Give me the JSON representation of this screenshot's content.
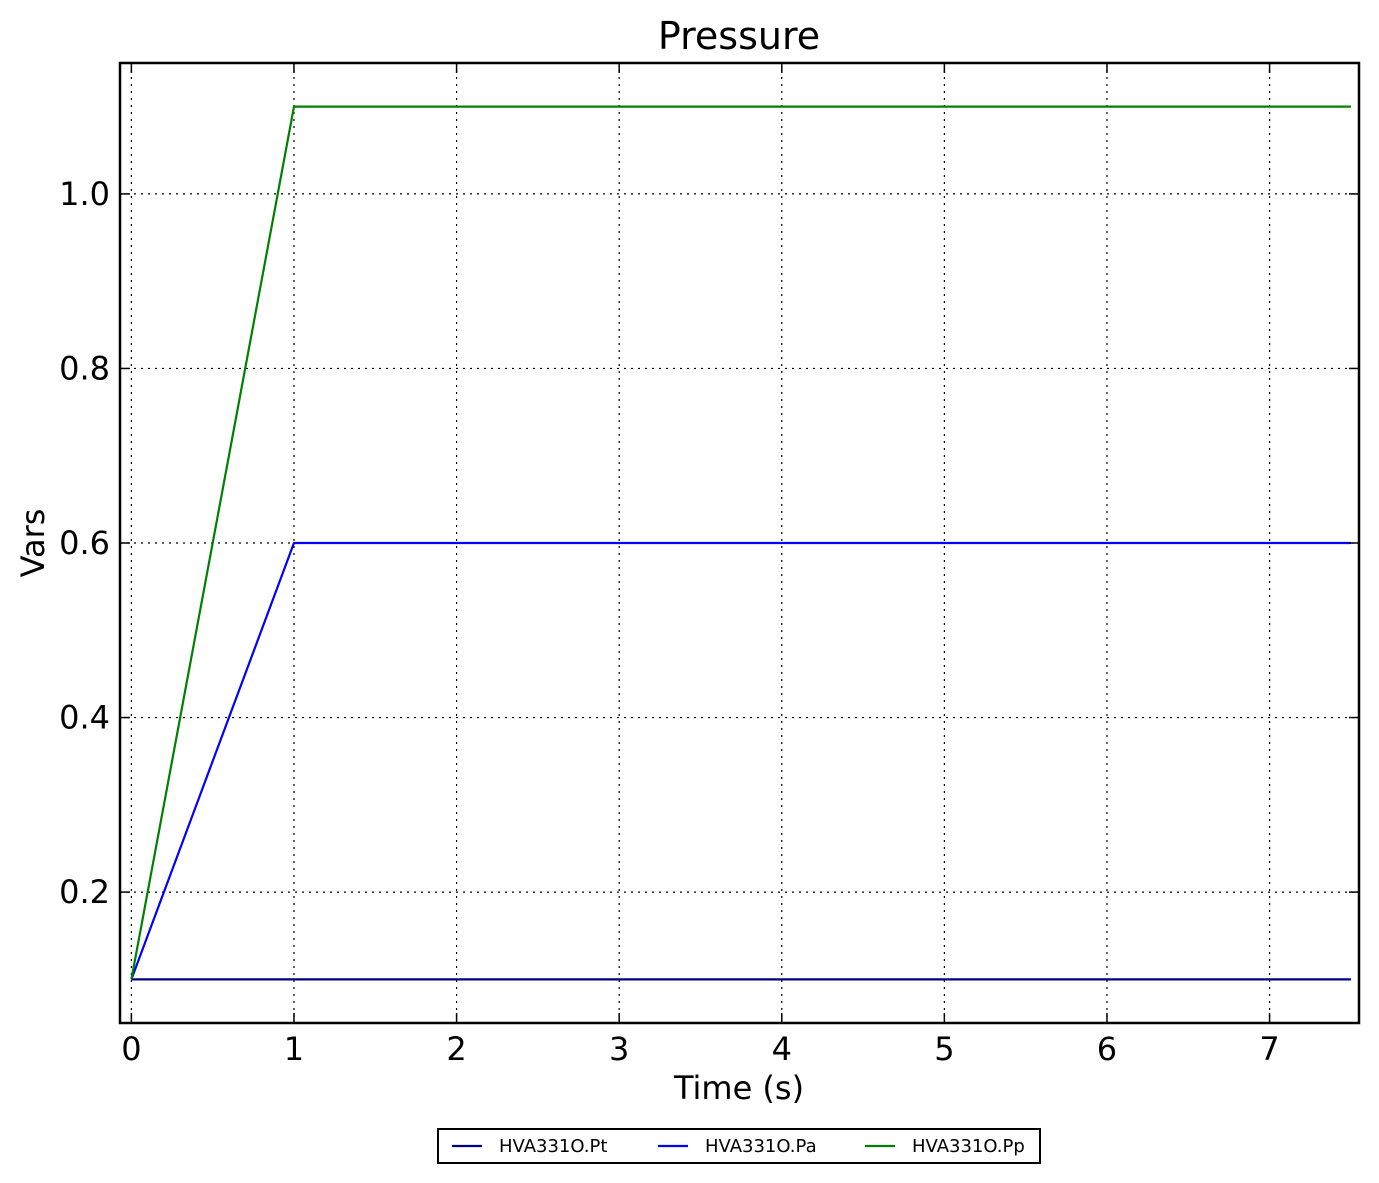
{
  "chart_data": {
    "type": "line",
    "title": "Pressure",
    "xlabel": "Time (s)",
    "ylabel": "Vars",
    "xlim": [
      -0.07,
      7.55
    ],
    "ylim": [
      0.05,
      1.15
    ],
    "xticks": [
      0,
      1,
      2,
      3,
      4,
      5,
      6,
      7
    ],
    "xtick_labels": [
      "0",
      "1",
      "2",
      "3",
      "4",
      "5",
      "6",
      "7"
    ],
    "yticks": [
      0.2,
      0.4,
      0.6,
      0.8,
      1.0
    ],
    "ytick_labels": [
      "0.2",
      "0.4",
      "0.6",
      "0.8",
      "1.0"
    ],
    "grid": true,
    "legend_position": "bottom-center",
    "series": [
      {
        "name": "HVA331O.Pt",
        "color": "#000080",
        "x": [
          0,
          7.5
        ],
        "y": [
          0.1,
          0.1
        ]
      },
      {
        "name": "HVA331O.Pa",
        "color": "#0000ff",
        "x": [
          0,
          1,
          7.5
        ],
        "y": [
          0.1,
          0.6,
          0.6
        ]
      },
      {
        "name": "HVA331O.Pp",
        "color": "#008000",
        "x": [
          0,
          1,
          7.5
        ],
        "y": [
          0.1,
          1.1,
          1.1
        ]
      }
    ]
  }
}
